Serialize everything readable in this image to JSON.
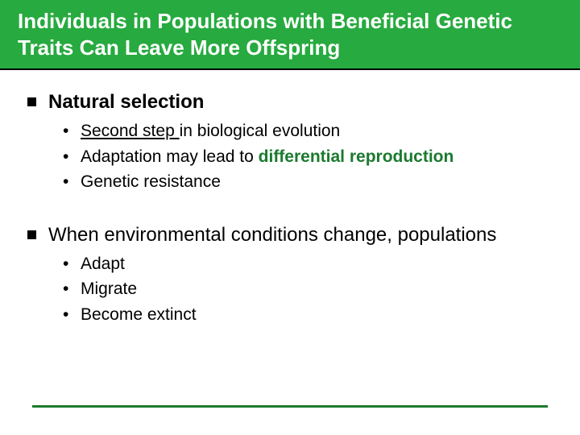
{
  "colors": {
    "titleBandBg": "#27aa3f",
    "titleText": "#ffffff",
    "bodyText": "#000000",
    "accentGreen": "#1a7a2e",
    "pageBg": "#ffffff"
  },
  "typography": {
    "titleFontSize": 26,
    "sectionFontSize": 24,
    "bulletFontSize": 21,
    "family": "Arial"
  },
  "title": "Individuals in Populations with Beneficial Genetic Traits Can Leave More Offspring",
  "sections": [
    {
      "heading": "Natural selection",
      "heading_bold": true,
      "bullets": [
        {
          "pre": "",
          "underline": "Second step ",
          "mid": "in biological evolution",
          "green": "",
          "post": ""
        },
        {
          "pre": "Adaptation may lead to ",
          "underline": "",
          "mid": "",
          "green": "differential reproduction",
          "post": ""
        },
        {
          "pre": "Genetic resistance",
          "underline": "",
          "mid": "",
          "green": "",
          "post": ""
        }
      ]
    },
    {
      "heading": "When environmental conditions change, populations",
      "heading_bold": false,
      "bullets": [
        {
          "pre": "Adapt",
          "underline": "",
          "mid": "",
          "green": "",
          "post": ""
        },
        {
          "pre": "Migrate",
          "underline": "",
          "mid": "",
          "green": "",
          "post": ""
        },
        {
          "pre": "Become extinct",
          "underline": "",
          "mid": "",
          "green": "",
          "post": ""
        }
      ]
    }
  ]
}
